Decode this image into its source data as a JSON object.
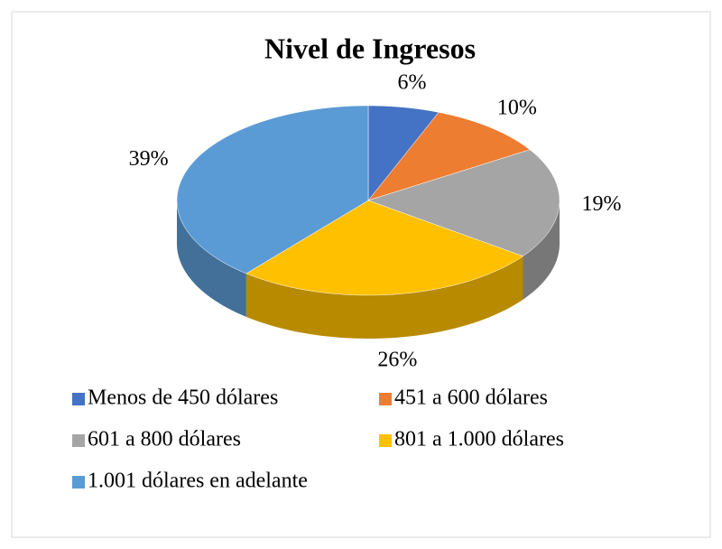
{
  "chart_data": {
    "type": "pie",
    "title": "Nivel de Ingresos",
    "categories": [
      "Menos de 450 dólares",
      "451 a 600 dólares",
      "601 a 800 dólares",
      "801 a 1.000 dólares",
      "1.001 dólares en adelante"
    ],
    "values": [
      6,
      10,
      19,
      26,
      39
    ],
    "value_labels": [
      "6%",
      "10%",
      "19%",
      "26%",
      "39%"
    ],
    "colors": [
      "#4472c4",
      "#ed7d31",
      "#a5a5a5",
      "#ffc000",
      "#5b9bd5"
    ],
    "legend": "bottom"
  }
}
